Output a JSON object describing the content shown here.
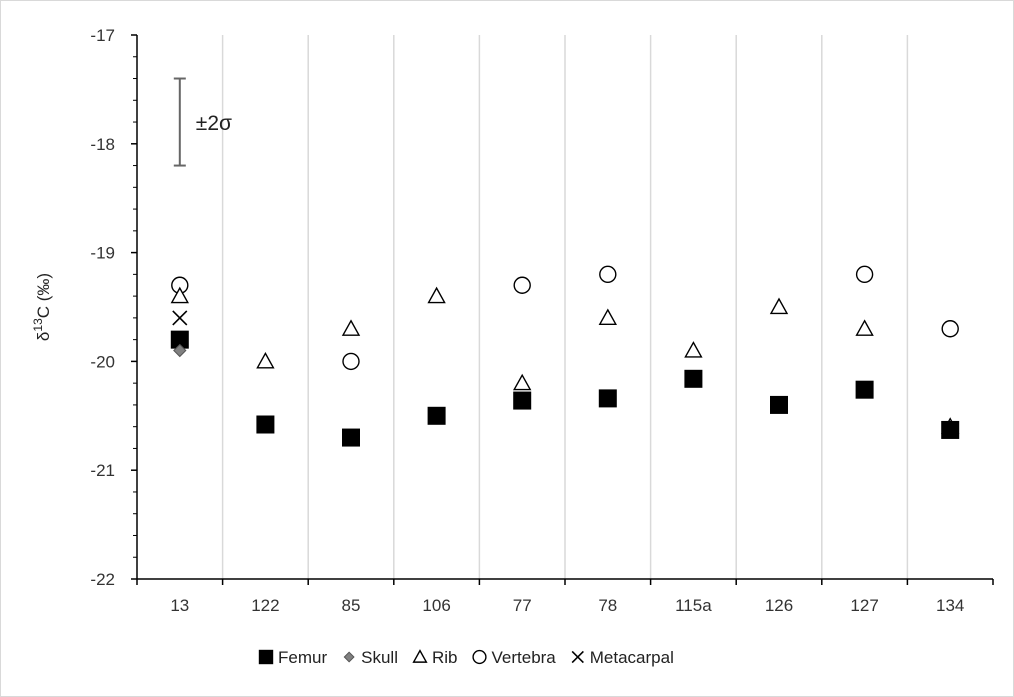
{
  "chart_data": {
    "type": "scatter",
    "title": "",
    "xlabel": "",
    "ylabel": "δ13C (‰)",
    "ylabel_parts": {
      "prefix": "δ",
      "superscript": "13",
      "suffix": "C (‰)"
    },
    "categories": [
      "13",
      "122",
      "85",
      "106",
      "77",
      "78",
      "115a",
      "126",
      "127",
      "134"
    ],
    "ylim": [
      -22,
      -17
    ],
    "yticks": [
      -22,
      -21,
      -20,
      -19,
      -18,
      -17
    ],
    "grid": "vertical",
    "legend_position": "bottom",
    "series": [
      {
        "name": "Femur",
        "marker": "filled-square",
        "color": "#000000",
        "values": [
          -19.8,
          -20.58,
          -20.7,
          -20.5,
          -20.36,
          -20.34,
          -20.16,
          -20.4,
          -20.26,
          -20.63
        ]
      },
      {
        "name": "Skull",
        "marker": "filled-diamond",
        "color": "#808080",
        "values": [
          -19.9,
          null,
          null,
          null,
          null,
          null,
          null,
          null,
          null,
          null
        ]
      },
      {
        "name": "Rib",
        "marker": "open-triangle",
        "color": "#000000",
        "values": [
          -19.4,
          -20.0,
          -19.7,
          -19.4,
          -20.2,
          -19.6,
          -19.9,
          -19.5,
          -19.7,
          -20.6
        ]
      },
      {
        "name": "Vertebra",
        "marker": "open-circle",
        "color": "#000000",
        "values": [
          -19.3,
          null,
          -20.0,
          null,
          -19.3,
          -19.2,
          null,
          null,
          -19.2,
          -19.7
        ]
      },
      {
        "name": "Metacarpal",
        "marker": "x",
        "color": "#000000",
        "values": [
          -19.6,
          null,
          null,
          null,
          null,
          null,
          null,
          null,
          null,
          null
        ]
      }
    ],
    "annotations": [
      {
        "text": "±2σ",
        "type": "error-bar",
        "category_index": 0,
        "y_from": -18.2,
        "y_to": -17.4
      }
    ]
  }
}
